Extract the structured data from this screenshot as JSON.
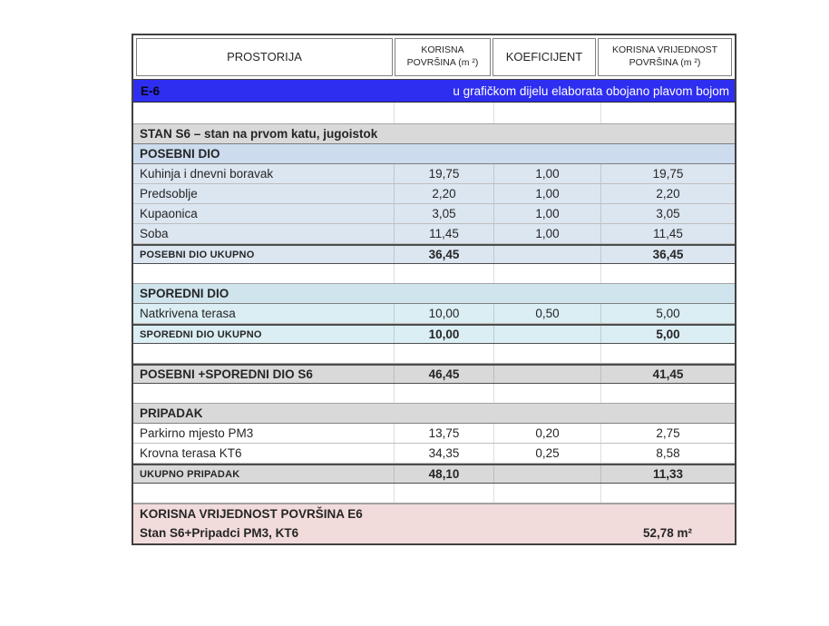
{
  "colors": {
    "banner_blue": "#2e2ef0",
    "section_gray": "#d9d9d9",
    "light_blue": "#dce6f1",
    "light_cyan": "#daeef3",
    "summary_pink": "#f2dcdb"
  },
  "table": {
    "header": {
      "col1": "PROSTORIJA",
      "col2_line1": "KORISNA",
      "col2_line2": "POVRŠINA (m ²)",
      "col3": "KOEFICIJENT",
      "col4_line1": "KORISNA VRIJEDNOST",
      "col4_line2": "POVRŠINA (m ²)"
    },
    "blue_row": {
      "code": "E-6",
      "note": "u grafičkom dijelu elaborata obojano plavom bojom"
    },
    "rows": [
      {
        "label": "",
        "area": "",
        "coef": "",
        "value": "",
        "style": "spacer sp-tall",
        "name": "spacer-row"
      },
      {
        "label": "STAN S6 – stan na prvom katu, jugoistok",
        "area": "",
        "coef": "",
        "value": "",
        "style": "gray bold hdr-row",
        "span": true,
        "name": "row-stan-s6"
      },
      {
        "label": "POSEBNI DIO",
        "area": "",
        "coef": "",
        "value": "",
        "style": "lbh bold hdr-row",
        "span": true,
        "name": "row-posebni-dio-header"
      },
      {
        "label": "Kuhinja i dnevni boravak",
        "area": "19,75",
        "coef": "1,00",
        "value": "19,75",
        "style": "lb no-bottom",
        "name": "row-kuhinja"
      },
      {
        "label": "Predsoblje",
        "area": "2,20",
        "coef": "1,00",
        "value": "2,20",
        "style": "lb no-bottom",
        "name": "row-predsoblje"
      },
      {
        "label": "Kupaonica",
        "area": "3,05",
        "coef": "1,00",
        "value": "3,05",
        "style": "lb no-bottom",
        "name": "row-kupaonica"
      },
      {
        "label": "Soba",
        "area": "11,45",
        "coef": "1,00",
        "value": "11,45",
        "style": "lb no-bottom",
        "name": "row-soba"
      },
      {
        "label": "POSEBNI DIO UKUPNO",
        "area": "36,45",
        "coef": "",
        "value": "36,45",
        "style": "lb total",
        "name": "row-posebni-dio-ukupno"
      },
      {
        "label": "",
        "area": "",
        "coef": "",
        "value": "",
        "style": "spacer",
        "name": "spacer-row"
      },
      {
        "label": "SPOREDNI DIO",
        "area": "",
        "coef": "",
        "value": "",
        "style": "cyh bold hdr-row",
        "span": true,
        "name": "row-sporedni-dio-header"
      },
      {
        "label": "Natkrivena terasa",
        "area": "10,00",
        "coef": "0,50",
        "value": "5,00",
        "style": "cy no-bottom",
        "name": "row-natkrivena-terasa"
      },
      {
        "label": "SPOREDNI DIO UKUPNO",
        "area": "10,00",
        "coef": "",
        "value": "5,00",
        "style": "cy total",
        "name": "row-sporedni-dio-ukupno"
      },
      {
        "label": "",
        "area": "",
        "coef": "",
        "value": "",
        "style": "spacer",
        "name": "spacer-row"
      },
      {
        "label": "POSEBNI +SPOREDNI DIO S6",
        "area": "46,45",
        "coef": "",
        "value": "41,45",
        "style": "gray total-big",
        "name": "row-posebni-sporedni-s6"
      },
      {
        "label": "",
        "area": "",
        "coef": "",
        "value": "",
        "style": "spacer",
        "name": "spacer-row"
      },
      {
        "label": "PRIPADAK",
        "area": "",
        "coef": "",
        "value": "",
        "style": "gray bold hdr-row",
        "span": true,
        "name": "row-pripadak-header"
      },
      {
        "label": "Parkirno mjesto PM3",
        "area": "13,75",
        "coef": "0,20",
        "value": "2,75",
        "style": "no-bottom",
        "name": "row-parkirno-mjesto"
      },
      {
        "label": "Krovna terasa KT6",
        "area": "34,35",
        "coef": "0,25",
        "value": "8,58",
        "style": "no-bottom",
        "name": "row-krovna-terasa"
      },
      {
        "label": "UKUPNO PRIPADAK",
        "area": "48,10",
        "coef": "",
        "value": "11,33",
        "style": "gray total",
        "name": "row-ukupno-pripadak"
      },
      {
        "label": "",
        "area": "",
        "coef": "",
        "value": "",
        "style": "spacer",
        "name": "spacer-row"
      }
    ],
    "footer": {
      "line1": "KORISNA VRIJEDNOST POVRŠINA E6",
      "line2": "Stan S6+Pripadci PM3, KT6",
      "value": "52,78 m²"
    }
  }
}
